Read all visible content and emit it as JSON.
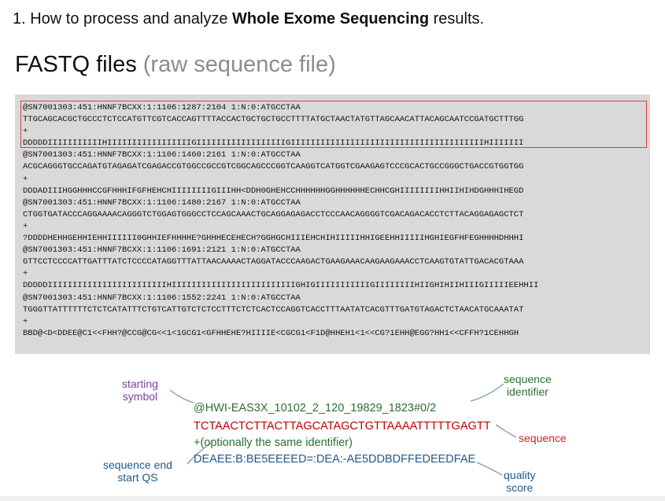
{
  "heading": {
    "prefix": "1. How to process and analyze ",
    "bold": "Whole Exome Sequencing",
    "suffix": " results."
  },
  "title": {
    "main": "FASTQ files",
    "sub": "(raw sequence file)"
  },
  "fastq_lines": [
    "@SN7001303:451:HNNF7BCXX:1:1106:1287:2104 1:N:0:ATGCCTAA",
    "TTGCAGCACGCTGCCCTCTCCATGTTCGTCACCAGTTTTACCACTGCTGCTGCCTTTTATGCTAACTATGTTAGCAACATTACAGCAATCCGATGCTTTGG",
    "+",
    "DDDDDIIIIIIIIIIIHIIIIIIIIIIIIIIIIIGIIIIIIIIIIIIIIIIIIGIIIIIIIIIIIIIIIIIIIIIIIIIIIIIIIIIIIIIIIHIIIIIII",
    "@SN7001303:451:HNNF7BCXX:1:1106:1460:2161 1:N:0:ATGCCTAA",
    "ACGCAGGGTGCCAGATGTAGAGATCGAGACCGTGGCCGCCGTCGGCAGCCCGGTCAAGGTCATGGTCGAAGAGTCCCGCACTGCCGGGCTGACCGTGGTGG",
    "+",
    "DDDADIIIHGGHHHCCGFHHHIFGFHEHCHIIIIIIIIGIIIHH<DDH0GHEHCCHHHHHHGGHHHHHHECHHCGHIIIIIIIIHHIIHIHDGHHHIHEGD",
    "@SN7001303:451:HNNF7BCXX:1:1106:1480:2167 1:N:0:ATGCCTAA",
    "CTGGTGATACCCAGGAAAACAGGGTCTGGAGTGGGCCTCCAGCAAACTGCAGGAGAGACCTCCCAACAGGGGTCGACAGACACCTCTTACAGGAGAGCTCT",
    "+",
    "?DDDDHEHHGEHHIEHHIIIIII0GHHIEFHHHHE?GHHHECEHECH?GGHGCHIIIEHCHIHIIIIIHHIGEEHHIIIIIHGHIEGFHFEGHHHHDHHHI",
    "@SN7001303:451:HNNF7BCXX:1:1106:1691:2121 1:N:0:ATGCCTAA",
    "GTTCCTCCCCATTGATTTATCTCCCCATAGGTTTATTAACAAAACTAGGATACCCAAGACTGAAGAAACAAGAAGAAACCTCAAGTGTATTGACACGTAAA",
    "+",
    "DDDDDIIIIIIIIIIIIIIIIIIIIIIIIHIIIIIIIIIIIIIIIIIIIIIIIIIGHIGIIIIIIIIIIIGIIIIIIIIHIIGHIHIIHIIIGIIIIIEEHHII",
    "@SN7001303:451:HNNF7BCXX:1:1106:1552:2241 1:N:0:ATGCCTAA",
    "TGGGTTATTTTTTCTCTCATATTTCTGTCATTGTCTCTCCTTTCTCTCACTCCAGGTCACCTTTAATATCACGTTTGATGTAGACTCTAACATGCAAATAT",
    "+",
    "BBD@<D<DDEE@C1<<FHH?@CCG@CG<<1<1GCG1<GFHHEHE?HIIIIE<CGCG1<F1D@HHEH1<1<<CG?1EHH@EGG?HH1<<CFFH?1CEHHGH"
  ],
  "diagram": {
    "starting_symbol_label": [
      "starting",
      "symbol"
    ],
    "sequence_identifier_label": [
      "sequence",
      "identifier"
    ],
    "sequence_label": "sequence",
    "sequence_end_label": [
      "sequence end",
      "start QS"
    ],
    "quality_score_label": [
      "quality",
      "score"
    ],
    "record": {
      "identifier": "@HWI-EAS3X_10102_2_120_19829_1823#0/2",
      "sequence": "TCTAACTCTTACTTAGCATAGCTGTTAAAATTTTTGAGTT",
      "plus_line": "+(optionally the same identifier)",
      "quality": "DEAEE:B:BE5EEEED=:DEA:-AE5DDBDFFEDEEDFAE"
    }
  },
  "colors": {
    "purple": "#7b3fa0",
    "green": "#2e6e2e",
    "red": "#d42020",
    "blue": "#1f5a8c",
    "highlight_border": "#e23b3b",
    "box_bg": "#d9d9d9"
  }
}
